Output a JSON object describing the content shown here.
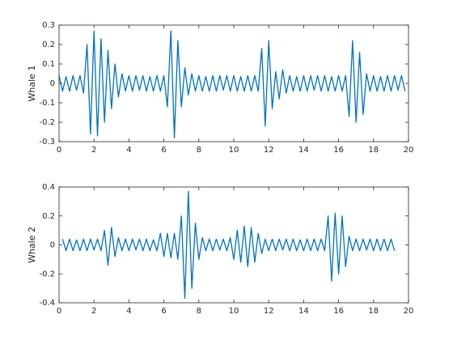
{
  "chart_data": [
    {
      "type": "line",
      "ylabel": "Whale 1",
      "color": "#0072bd",
      "xlim": [
        0,
        20
      ],
      "ylim": [
        -0.3,
        0.3
      ],
      "xticks": [
        0,
        2,
        4,
        6,
        8,
        10,
        12,
        14,
        16,
        18,
        20
      ],
      "yticks": [
        -0.3,
        -0.2,
        -0.1,
        0,
        0.1,
        0.2,
        0.3
      ],
      "x": [
        0,
        0.2,
        0.4,
        0.6,
        0.8,
        1,
        1.2,
        1.4,
        1.6,
        1.8,
        2,
        2.2,
        2.4,
        2.6,
        2.8,
        3,
        3.2,
        3.4,
        3.6,
        3.8,
        4,
        4.2,
        4.4,
        4.6,
        4.8,
        5,
        5.2,
        5.4,
        5.6,
        5.8,
        6,
        6.2,
        6.4,
        6.6,
        6.8,
        7,
        7.2,
        7.4,
        7.6,
        7.8,
        8,
        8.2,
        8.4,
        8.6,
        8.8,
        9,
        9.2,
        9.4,
        9.6,
        9.8,
        10,
        10.2,
        10.4,
        10.6,
        10.8,
        11,
        11.2,
        11.4,
        11.6,
        11.8,
        12,
        12.2,
        12.4,
        12.6,
        12.8,
        13,
        13.2,
        13.4,
        13.6,
        13.8,
        14,
        14.2,
        14.4,
        14.6,
        14.8,
        15,
        15.2,
        15.4,
        15.6,
        15.8,
        16,
        16.2,
        16.4,
        16.6,
        16.8,
        17,
        17.2,
        17.4,
        17.6,
        17.8,
        18,
        18.2,
        18.4,
        18.6,
        18.8,
        19,
        19.2,
        19.4,
        19.6,
        19.8
      ],
      "values": [
        0.04,
        -0.04,
        0.035,
        -0.04,
        0.04,
        -0.035,
        0.04,
        -0.05,
        0.2,
        -0.26,
        0.27,
        -0.27,
        0.23,
        -0.2,
        0.17,
        -0.13,
        0.1,
        -0.07,
        0.05,
        -0.04,
        0.04,
        -0.04,
        0.04,
        -0.035,
        0.04,
        -0.04,
        0.035,
        -0.04,
        0.04,
        -0.04,
        0.04,
        -0.12,
        0.27,
        -0.28,
        0.22,
        -0.12,
        0.08,
        -0.06,
        0.05,
        -0.04,
        0.04,
        -0.04,
        0.035,
        -0.04,
        0.04,
        -0.04,
        0.04,
        -0.035,
        0.04,
        -0.04,
        0.04,
        -0.04,
        0.035,
        -0.04,
        0.04,
        -0.04,
        0.04,
        -0.04,
        0.18,
        -0.22,
        0.22,
        -0.13,
        0.06,
        -0.08,
        0.07,
        -0.05,
        0.04,
        -0.04,
        0.035,
        -0.04,
        0.04,
        -0.04,
        0.04,
        -0.035,
        0.04,
        -0.04,
        0.04,
        -0.04,
        0.035,
        -0.04,
        0.04,
        -0.04,
        0.04,
        -0.17,
        0.22,
        -0.2,
        0.16,
        -0.16,
        0.05,
        -0.04,
        0.04,
        -0.04,
        0.035,
        -0.04,
        0.04,
        -0.04,
        0.04,
        -0.035,
        0.04,
        -0.04
      ]
    },
    {
      "type": "line",
      "ylabel": "Whale 2",
      "color": "#0072bd",
      "xlim": [
        0,
        20
      ],
      "ylim": [
        -0.4,
        0.4
      ],
      "xticks": [
        0,
        2,
        4,
        6,
        8,
        10,
        12,
        14,
        16,
        18,
        20
      ],
      "yticks": [
        -0.4,
        -0.2,
        0,
        0.2,
        0.4
      ],
      "x": [
        0.2,
        0.4,
        0.6,
        0.8,
        1,
        1.2,
        1.4,
        1.6,
        1.8,
        2,
        2.2,
        2.4,
        2.6,
        2.8,
        3,
        3.2,
        3.4,
        3.6,
        3.8,
        4,
        4.2,
        4.4,
        4.6,
        4.8,
        5,
        5.2,
        5.4,
        5.6,
        5.8,
        6,
        6.2,
        6.4,
        6.6,
        6.8,
        7,
        7.2,
        7.4,
        7.6,
        7.8,
        8,
        8.2,
        8.4,
        8.6,
        8.8,
        9,
        9.2,
        9.4,
        9.6,
        9.8,
        10,
        10.2,
        10.4,
        10.6,
        10.8,
        11,
        11.2,
        11.4,
        11.6,
        11.8,
        12,
        12.2,
        12.4,
        12.6,
        12.8,
        13,
        13.2,
        13.4,
        13.6,
        13.8,
        14,
        14.2,
        14.4,
        14.6,
        14.8,
        15,
        15.2,
        15.4,
        15.6,
        15.8,
        16,
        16.2,
        16.4,
        16.6,
        16.8,
        17,
        17.2,
        17.4,
        17.6,
        17.8,
        18,
        18.2,
        18.4,
        18.6,
        18.8,
        19,
        19.2
      ],
      "values": [
        0.04,
        -0.04,
        0.04,
        -0.04,
        0.035,
        -0.04,
        0.04,
        -0.04,
        0.04,
        -0.035,
        0.04,
        -0.04,
        0.1,
        -0.14,
        0.12,
        -0.08,
        0.05,
        -0.04,
        0.04,
        -0.04,
        0.04,
        -0.035,
        0.04,
        -0.04,
        0.04,
        -0.04,
        0.035,
        -0.04,
        0.08,
        -0.08,
        0.08,
        -0.09,
        0.08,
        -0.1,
        0.2,
        -0.37,
        0.37,
        -0.3,
        0.15,
        -0.1,
        0.05,
        -0.04,
        0.04,
        -0.04,
        0.04,
        -0.035,
        0.04,
        -0.04,
        0.05,
        -0.1,
        0.1,
        -0.12,
        0.13,
        -0.15,
        0.12,
        -0.12,
        0.08,
        -0.06,
        0.04,
        -0.04,
        0.04,
        -0.04,
        0.04,
        -0.035,
        0.04,
        -0.04,
        0.04,
        -0.04,
        0.035,
        -0.04,
        0.04,
        -0.04,
        0.04,
        -0.04,
        0.04,
        -0.04,
        0.2,
        -0.25,
        0.22,
        -0.2,
        0.2,
        -0.15,
        0.06,
        -0.04,
        0.04,
        -0.04,
        0.04,
        -0.035,
        0.04,
        -0.04,
        0.04,
        -0.04,
        0.04,
        -0.04,
        0.04,
        -0.04
      ]
    }
  ]
}
